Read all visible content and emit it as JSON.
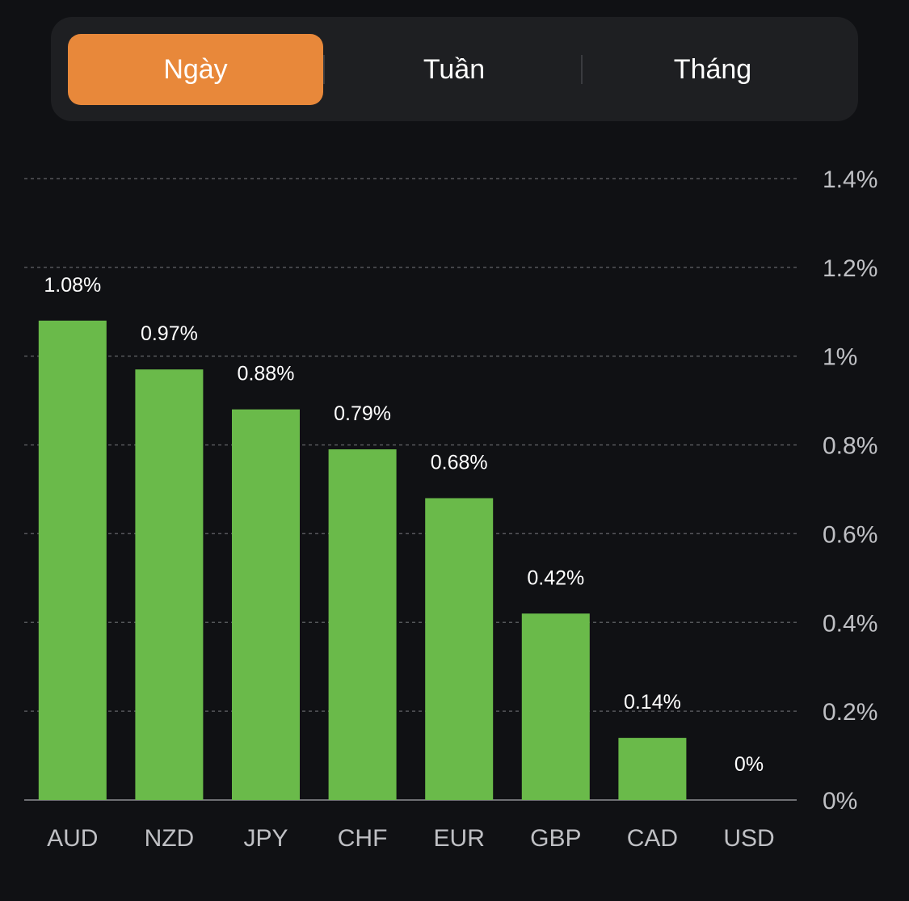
{
  "tabs": {
    "items": [
      {
        "label": "Ngày"
      },
      {
        "label": "Tuần"
      },
      {
        "label": "Tháng"
      }
    ],
    "active_index": 0
  },
  "colors": {
    "background": "#101114",
    "panel": "#1e1f22",
    "accent": "#e8883a",
    "bar": "#6aba4a",
    "gridline": "#55565a",
    "axis_text": "#bfc0c4",
    "value_text": "#ffffff"
  },
  "chart_data": {
    "type": "bar",
    "categories": [
      "AUD",
      "NZD",
      "JPY",
      "CHF",
      "EUR",
      "GBP",
      "CAD",
      "USD"
    ],
    "values": [
      1.08,
      0.97,
      0.88,
      0.79,
      0.68,
      0.42,
      0.14,
      0
    ],
    "value_labels": [
      "1.08%",
      "0.97%",
      "0.88%",
      "0.79%",
      "0.68%",
      "0.42%",
      "0.14%",
      "0%"
    ],
    "ylim": [
      0,
      1.4
    ],
    "yticks": [
      0,
      0.2,
      0.4,
      0.6,
      0.8,
      1,
      1.2,
      1.4
    ],
    "ytick_labels": [
      "0%",
      "0.2%",
      "0.4%",
      "0.6%",
      "0.8%",
      "1%",
      "1.2%",
      "1.4%"
    ],
    "y_axis_position": "right",
    "grid": true
  }
}
